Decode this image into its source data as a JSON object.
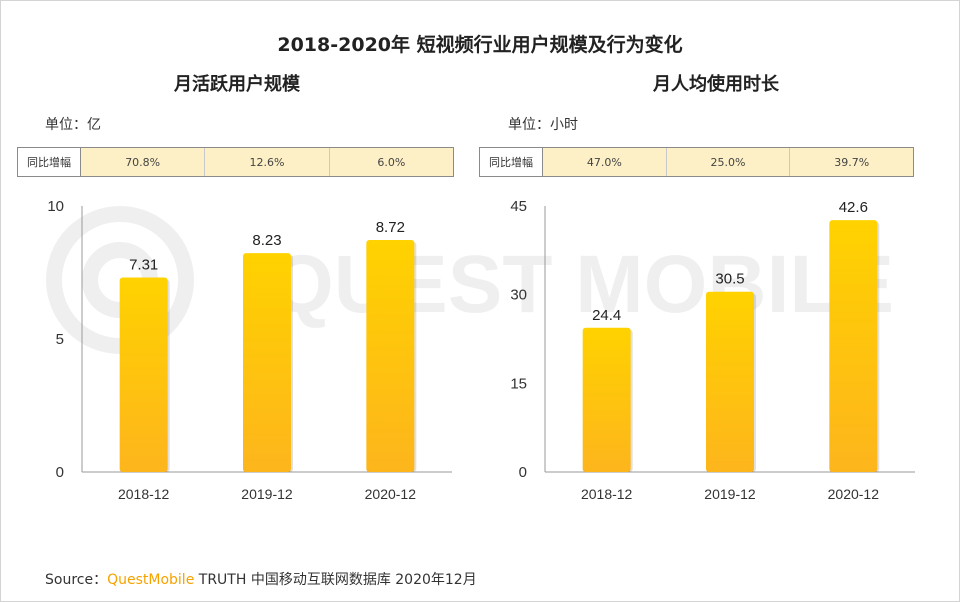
{
  "title": "2018-2020年 短视频行业用户规模及行为变化",
  "watermark_text": "QUEST MOBILE",
  "colors": {
    "bar_top": "#ffd200",
    "bar_bottom": "#fdb51c",
    "yoy_bg": "#fdf0c6",
    "brand": "#f5a300"
  },
  "left": {
    "subtitle": "月活跃用户规模",
    "unit": "单位：亿",
    "yoy_label": "同比增幅",
    "yoy_values": [
      "70.8%",
      "12.6%",
      "6.0%"
    ]
  },
  "right": {
    "subtitle": "月人均使用时长",
    "unit": "单位：小时",
    "yoy_label": "同比增幅",
    "yoy_values": [
      "47.0%",
      "25.0%",
      "39.7%"
    ]
  },
  "source": {
    "prefix": "Source：",
    "brand": "QuestMobile",
    "rest": " TRUTH 中国移动互联网数据库 2020年12月"
  },
  "chart_data": [
    {
      "type": "bar",
      "categories": [
        "2018-12",
        "2019-12",
        "2020-12"
      ],
      "values": [
        7.31,
        8.23,
        8.72
      ],
      "value_labels": [
        "7.31",
        "8.23",
        "8.72"
      ],
      "ylim": [
        0,
        10
      ],
      "yticks": [
        0,
        5,
        10
      ],
      "ytick_labels": [
        "0",
        "5",
        "10"
      ],
      "grid": false
    },
    {
      "type": "bar",
      "categories": [
        "2018-12",
        "2019-12",
        "2020-12"
      ],
      "values": [
        24.4,
        30.5,
        42.6
      ],
      "value_labels": [
        "24.4",
        "30.5",
        "42.6"
      ],
      "ylim": [
        0,
        45
      ],
      "yticks": [
        0,
        15,
        30,
        45
      ],
      "ytick_labels": [
        "0",
        "15",
        "30",
        "45"
      ],
      "grid": false
    }
  ]
}
